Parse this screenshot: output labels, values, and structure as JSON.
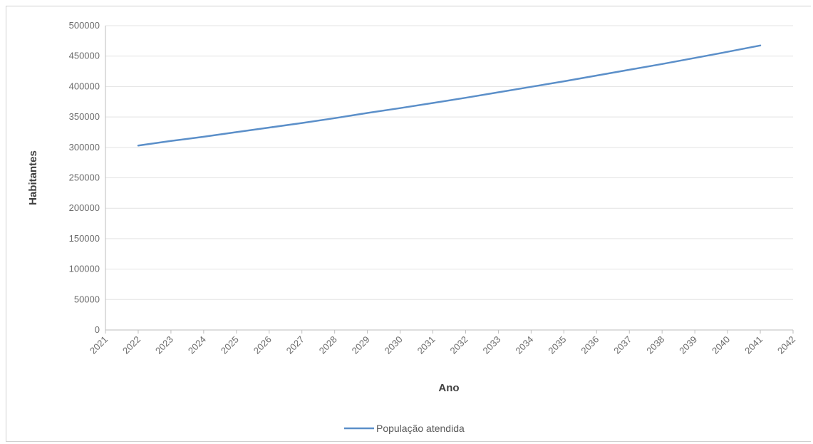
{
  "chart_data": {
    "type": "line",
    "xlabel": "Ano",
    "ylabel": "Habitantes",
    "x_categories": [
      "2021",
      "2022",
      "2023",
      "2024",
      "2025",
      "2026",
      "2027",
      "2028",
      "2029",
      "2030",
      "2031",
      "2032",
      "2033",
      "2034",
      "2035",
      "2036",
      "2037",
      "2038",
      "2039",
      "2040",
      "2041",
      "2042"
    ],
    "ylim": [
      0,
      500000
    ],
    "y_ticks": [
      "0",
      "50000",
      "100000",
      "150000",
      "200000",
      "250000",
      "300000",
      "350000",
      "400000",
      "450000",
      "500000"
    ],
    "grid": "horizontal",
    "legend_position": "bottom",
    "series": [
      {
        "name": "População atendida",
        "color": "#5b8fc9",
        "x": [
          "2022",
          "2023",
          "2024",
          "2025",
          "2026",
          "2027",
          "2028",
          "2029",
          "2030",
          "2031",
          "2032",
          "2033",
          "2034",
          "2035",
          "2036",
          "2037",
          "2038",
          "2039",
          "2040",
          "2041"
        ],
        "values": [
          303000,
          310500,
          317500,
          325000,
          332500,
          340000,
          348000,
          356500,
          364500,
          373000,
          381500,
          390500,
          399500,
          408500,
          418000,
          427500,
          437000,
          447000,
          457000,
          467500
        ]
      }
    ]
  }
}
